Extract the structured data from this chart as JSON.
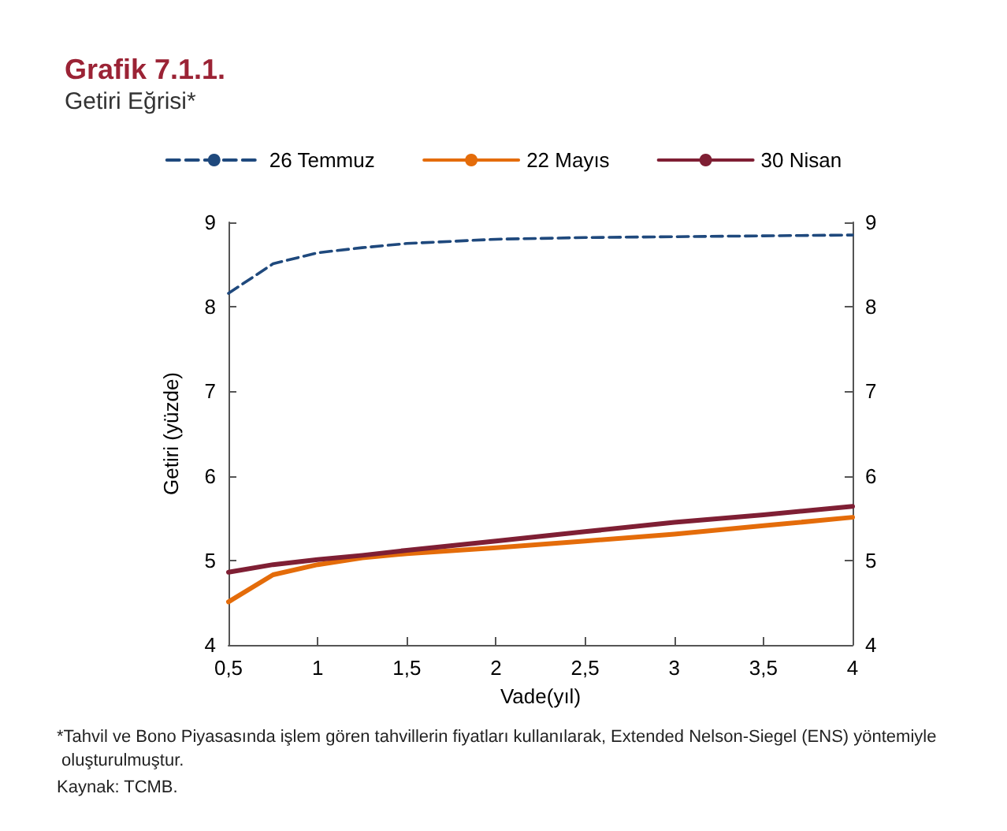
{
  "chart_data": {
    "type": "line",
    "title": "Grafik 7.1.1.",
    "subtitle": "Getiri Eğrisi*",
    "xlabel": "Vade(yıl)",
    "ylabel": "Getiri (yüzde)",
    "x": [
      0.5,
      0.75,
      1,
      1.25,
      1.5,
      2,
      2.5,
      3,
      3.5,
      4
    ],
    "series": [
      {
        "name": "26 Temmuz",
        "color": "#1f497d",
        "line_style": "dashed",
        "values": [
          8.16,
          8.51,
          8.64,
          8.7,
          8.75,
          8.8,
          8.82,
          8.83,
          8.84,
          8.85
        ]
      },
      {
        "name": "22 Mayıs",
        "color": "#e46c0a",
        "line_style": "solid",
        "values": [
          4.51,
          4.83,
          4.95,
          5.03,
          5.08,
          5.15,
          5.23,
          5.31,
          5.41,
          5.51
        ]
      },
      {
        "name": "30 Nisan",
        "color": "#7f1f34",
        "line_style": "solid",
        "values": [
          4.86,
          4.95,
          5.01,
          5.06,
          5.12,
          5.23,
          5.34,
          5.45,
          5.54,
          5.64
        ]
      }
    ],
    "xlim": [
      0.5,
      4
    ],
    "xticks": [
      {
        "value": 0.5,
        "label": "0,5"
      },
      1,
      {
        "value": 1.5,
        "label": "1,5"
      },
      2,
      {
        "value": 2.5,
        "label": "2,5"
      },
      3,
      {
        "value": 3.5,
        "label": "3,5"
      },
      4
    ],
    "ylim": [
      4,
      9
    ],
    "yticks": [
      4,
      5,
      6,
      7,
      8,
      9
    ],
    "y2lim": [
      4,
      9
    ],
    "y2ticks": [
      4,
      5,
      6,
      7,
      8,
      9
    ],
    "grid": false,
    "legend": "top",
    "marker": "none",
    "annotations": [
      "*Tahvil ve Bono Piyasasında işlem gören tahvillerin fiyatları kullanılarak, Extended Nelson-Siegel (ENS) yöntemiyle oluşturulmuştur.",
      "Kaynak: TCMB."
    ]
  }
}
